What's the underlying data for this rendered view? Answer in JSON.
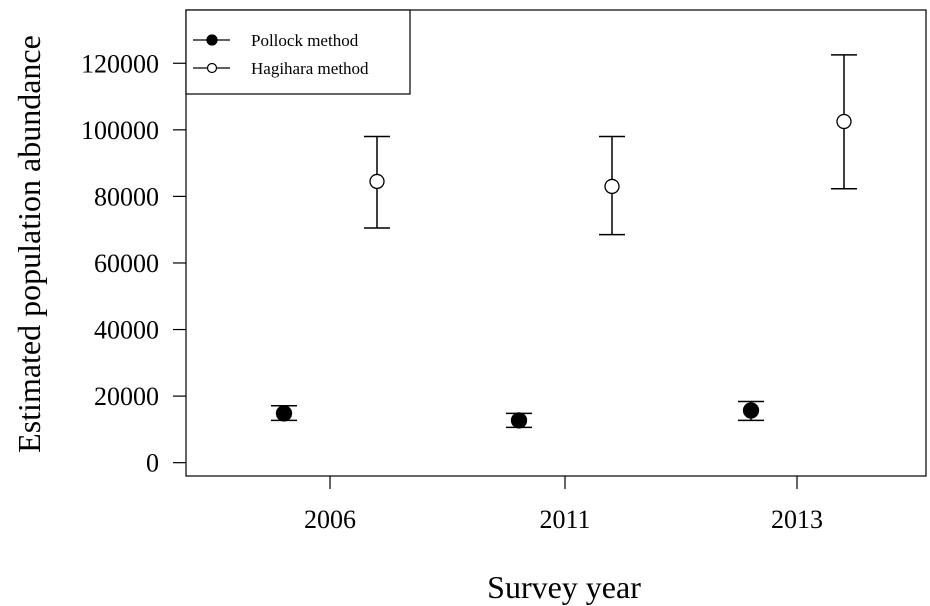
{
  "chart_data": {
    "type": "scatter",
    "title": "",
    "xlabel": "Survey year",
    "ylabel": "Estimated population abundance",
    "categories": [
      "2006",
      "2011",
      "2013"
    ],
    "ylim": [
      -4000,
      136000
    ],
    "yticks": [
      0,
      20000,
      40000,
      60000,
      80000,
      100000,
      120000
    ],
    "ytick_labels": [
      "0",
      "20000",
      "40000",
      "60000",
      "80000",
      "100000",
      "120000"
    ],
    "grid": false,
    "legend_position": "top-left",
    "series": [
      {
        "name": "Pollock method",
        "marker": "filled-circle",
        "color": "#000000",
        "values": [
          14800,
          12700,
          15700
        ],
        "lower": [
          12700,
          10600,
          12700
        ],
        "upper": [
          17100,
          14800,
          18400
        ]
      },
      {
        "name": "Hagihara method",
        "marker": "open-circle",
        "color": "#000000",
        "values": [
          84500,
          83000,
          102500
        ],
        "lower": [
          70500,
          68500,
          82300
        ],
        "upper": [
          98000,
          98000,
          122500
        ]
      }
    ]
  }
}
